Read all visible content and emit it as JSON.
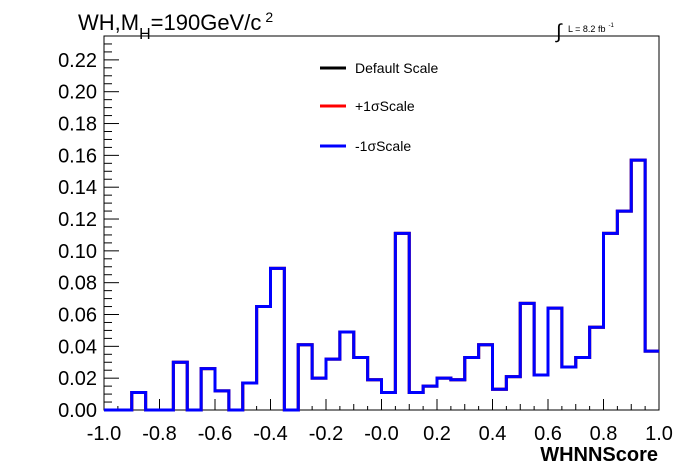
{
  "title": {
    "main_prefix": "WH,M",
    "subscript": "H",
    "main_suffix": "=190GeV/c",
    "superscript": "2"
  },
  "lumi": {
    "integral_sign": "∫",
    "text": "L = 8.2 fb",
    "exponent": "-1"
  },
  "colors": {
    "default": "#000000",
    "plus": "#ff0000",
    "minus": "#0000ff"
  },
  "chart_data": {
    "type": "line",
    "style": "step-histogram",
    "xlabel": "WHNNScore",
    "ylabel": "",
    "xlim": [
      -1.0,
      1.0
    ],
    "ylim": [
      0.0,
      0.235
    ],
    "xticks": [
      "-1.0",
      "-0.8",
      "-0.6",
      "-0.4",
      "-0.2",
      "-0.0",
      "0.2",
      "0.4",
      "0.6",
      "0.8",
      "1.0"
    ],
    "yticks": [
      "0.00",
      "0.02",
      "0.04",
      "0.06",
      "0.08",
      "0.10",
      "0.12",
      "0.14",
      "0.16",
      "0.18",
      "0.20",
      "0.22"
    ],
    "grid": false,
    "legend_position": "top-center",
    "bin_edges": [
      -1.0,
      -0.95,
      -0.9,
      -0.85,
      -0.8,
      -0.75,
      -0.7,
      -0.65,
      -0.6,
      -0.55,
      -0.5,
      -0.45,
      -0.4,
      -0.35,
      -0.3,
      -0.25,
      -0.2,
      -0.15,
      -0.1,
      -0.05,
      0.0,
      0.05,
      0.1,
      0.15,
      0.2,
      0.25,
      0.3,
      0.35,
      0.4,
      0.45,
      0.5,
      0.55,
      0.6,
      0.65,
      0.7,
      0.75,
      0.8,
      0.85,
      0.9,
      0.95,
      1.0
    ],
    "series": [
      {
        "name": "Default Scale",
        "color": "#000000",
        "values": [
          0.0,
          0.0,
          0.011,
          0.0,
          0.0,
          0.03,
          0.0,
          0.026,
          0.012,
          0.0,
          0.017,
          0.065,
          0.089,
          0.0,
          0.041,
          0.02,
          0.032,
          0.049,
          0.033,
          0.019,
          0.011,
          0.111,
          0.011,
          0.015,
          0.02,
          0.019,
          0.033,
          0.041,
          0.013,
          0.021,
          0.067,
          0.022,
          0.064,
          0.027,
          0.033,
          0.052,
          0.111,
          0.125,
          0.157,
          0.037
        ]
      },
      {
        "name": "+1σScale",
        "color": "#ff0000",
        "values": [
          0.0,
          0.0,
          0.011,
          0.0,
          0.0,
          0.03,
          0.0,
          0.026,
          0.012,
          0.0,
          0.017,
          0.065,
          0.089,
          0.0,
          0.041,
          0.02,
          0.032,
          0.049,
          0.033,
          0.019,
          0.011,
          0.111,
          0.011,
          0.015,
          0.02,
          0.019,
          0.033,
          0.041,
          0.013,
          0.021,
          0.067,
          0.022,
          0.064,
          0.027,
          0.033,
          0.052,
          0.111,
          0.125,
          0.157,
          0.037
        ]
      },
      {
        "name": "-1σScale",
        "color": "#0000ff",
        "values": [
          0.0,
          0.0,
          0.011,
          0.0,
          0.0,
          0.03,
          0.0,
          0.026,
          0.012,
          0.0,
          0.017,
          0.065,
          0.089,
          0.0,
          0.041,
          0.02,
          0.032,
          0.049,
          0.033,
          0.019,
          0.011,
          0.111,
          0.011,
          0.015,
          0.02,
          0.019,
          0.033,
          0.041,
          0.013,
          0.021,
          0.067,
          0.022,
          0.064,
          0.027,
          0.033,
          0.052,
          0.111,
          0.125,
          0.157,
          0.037
        ]
      }
    ]
  }
}
